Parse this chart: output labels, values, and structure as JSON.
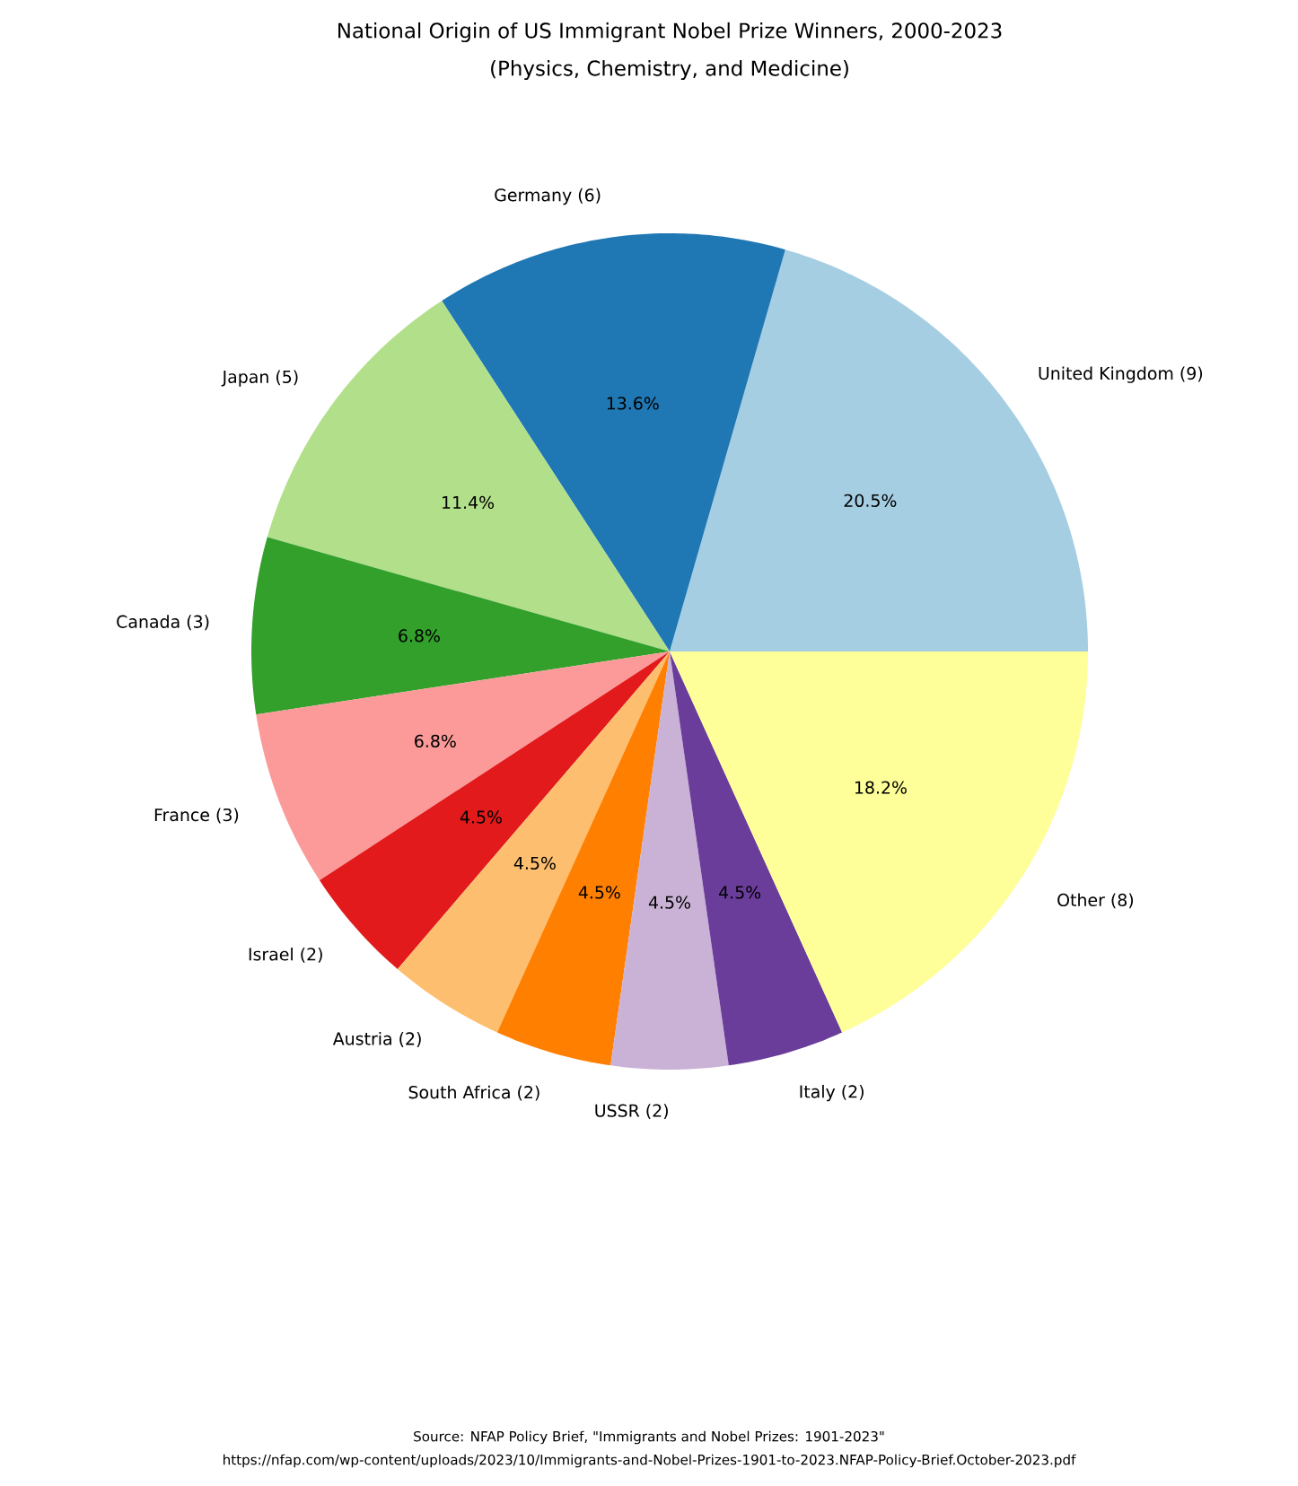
{
  "chart_data": {
    "type": "pie",
    "title": "National Origin of US Immigrant Nobel Prize Winners, 2000-2023",
    "subtitle": "(Physics, Chemistry, and Medicine)",
    "categories": [
      "United Kingdom (9)",
      "Germany (6)",
      "Japan (5)",
      "Canada (3)",
      "France (3)",
      "Israel (2)",
      "Austria (2)",
      "South Africa (2)",
      "USSR (2)",
      "Italy (2)",
      "Other (8)"
    ],
    "values": [
      20.5,
      13.6,
      11.4,
      6.8,
      6.8,
      4.5,
      4.5,
      4.5,
      4.5,
      4.5,
      18.2
    ],
    "value_labels": [
      "20.5%",
      "13.6%",
      "11.4%",
      "6.8%",
      "6.8%",
      "4.5%",
      "4.5%",
      "4.5%",
      "4.5%",
      "4.5%",
      "18.2%"
    ],
    "colors": [
      "#a6cee3",
      "#1f78b4",
      "#b2df8a",
      "#33a02c",
      "#fb9a99",
      "#e31a1c",
      "#fdbf6f",
      "#ff7f00",
      "#cab2d6",
      "#6a3d9a",
      "#ffff99"
    ],
    "annotations": [
      "Source: NFAP Policy Brief, \"Immigrants and Nobel Prizes: 1901-2023\"",
      "https://nfap.com/wp-content/uploads/2023/10/Immigrants-and-Nobel-Prizes-1901-to-2023.NFAP-Policy-Brief.October-2023.pdf"
    ]
  }
}
